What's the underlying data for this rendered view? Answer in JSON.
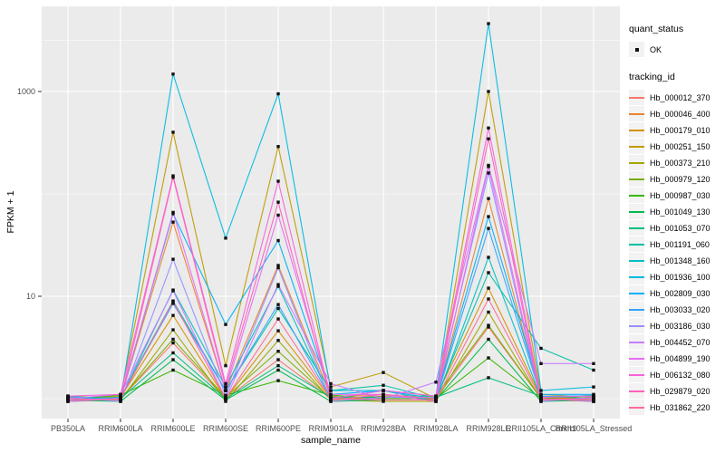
{
  "chart_data": {
    "type": "line",
    "title": "",
    "xlabel": "sample_name",
    "ylabel": "FPKM + 1",
    "y_scale": "log10",
    "y_ticks": [
      10,
      1000
    ],
    "y_minor_gridlines": [
      1,
      100,
      3162
    ],
    "ylim": [
      0.8,
      5600
    ],
    "grid": true,
    "panel_bg": "#EBEBEB",
    "gridline_color": "#FFFFFF",
    "tick_label_color": "#4D4D4D",
    "marker_color": "#111111",
    "legend": {
      "position": "right",
      "quant_status_title": "quant_status",
      "quant_status_items": [
        "OK"
      ],
      "tracking_title": "tracking_id"
    },
    "categories": [
      "PB350LA",
      "RRIM600LA",
      "RRIM600LE",
      "RRIM600SE",
      "RRIM600PE",
      "RRIM901LA",
      "RRIM928BA",
      "RRIM928LA",
      "RRIM928LE",
      "RRII105LA_Control",
      "RRII105LA_Stressed"
    ],
    "series": [
      {
        "name": "Hb_000012_370",
        "color": "#F8766D",
        "values": [
          1.0,
          1.0,
          3.5,
          1.0,
          2.4,
          1.0,
          1.0,
          1.0,
          5.0,
          1.0,
          1.0
        ]
      },
      {
        "name": "Hb_000046_400",
        "color": "#EA8331",
        "values": [
          0.97,
          1.0,
          53,
          1.2,
          20,
          1.05,
          1.1,
          0.97,
          90,
          1.0,
          0.97
        ]
      },
      {
        "name": "Hb_000179_010",
        "color": "#D89000",
        "values": [
          1.03,
          1.03,
          6.5,
          1.0,
          4.6,
          1.0,
          1.03,
          1.03,
          12,
          1.03,
          1.0
        ]
      },
      {
        "name": "Hb_000251_150",
        "color": "#C09B00",
        "values": [
          1.0,
          1.06,
          400,
          2.1,
          290,
          1.3,
          1.8,
          1.0,
          1000,
          1.1,
          1.03
        ]
      },
      {
        "name": "Hb_000373_210",
        "color": "#A3A500",
        "values": [
          0.94,
          0.97,
          4.7,
          0.94,
          3.7,
          0.97,
          0.94,
          0.94,
          7.0,
          0.97,
          0.94
        ]
      },
      {
        "name": "Hb_000979_120",
        "color": "#7CAE00",
        "values": [
          1.06,
          1.0,
          3.8,
          1.03,
          2.9,
          1.0,
          1.06,
          1.06,
          5.2,
          1.0,
          1.06
        ]
      },
      {
        "name": "Hb_000987_030",
        "color": "#39B600",
        "values": [
          1.0,
          1.08,
          1.9,
          1.08,
          1.5,
          1.08,
          1.0,
          1.0,
          2.5,
          1.0,
          1.08
        ]
      },
      {
        "name": "Hb_001049_130",
        "color": "#00BB4E",
        "values": [
          0.97,
          0.94,
          2.4,
          0.97,
          1.9,
          0.94,
          0.97,
          0.97,
          3.8,
          0.94,
          0.97
        ]
      },
      {
        "name": "Hb_001053_070",
        "color": "#00BF7D",
        "values": [
          1.03,
          1.0,
          2.8,
          1.0,
          2.1,
          1.03,
          1.03,
          1.03,
          1.6,
          1.06,
          1.0
        ]
      },
      {
        "name": "Hb_001191_060",
        "color": "#00C1A3",
        "values": [
          1.0,
          1.03,
          9.0,
          1.2,
          7.6,
          1.2,
          1.35,
          1.0,
          17,
          3.1,
          1.9
        ]
      },
      {
        "name": "Hb_001348_160",
        "color": "#00BFC4",
        "values": [
          0.94,
          1.0,
          11.5,
          1.3,
          12.5,
          1.0,
          1.2,
          0.94,
          24,
          1.0,
          0.94
        ]
      },
      {
        "name": "Hb_001936_100",
        "color": "#00BAE0",
        "values": [
          1.06,
          0.97,
          1480,
          37,
          950,
          1.2,
          1.2,
          1.06,
          4600,
          1.2,
          1.3
        ]
      },
      {
        "name": "Hb_002809_030",
        "color": "#00B0F6",
        "values": [
          1.0,
          1.0,
          64,
          5.3,
          35,
          1.1,
          1.2,
          1.0,
          60,
          1.1,
          1.1
        ]
      },
      {
        "name": "Hb_003033_020",
        "color": "#35A2FF",
        "values": [
          0.97,
          1.03,
          8.5,
          1.2,
          8.3,
          1.0,
          0.97,
          0.97,
          46,
          1.05,
          1.07
        ]
      },
      {
        "name": "Hb_003186_030",
        "color": "#9590FF",
        "values": [
          1.03,
          0.94,
          23,
          1.06,
          19,
          0.94,
          1.03,
          1.03,
          160,
          0.94,
          1.03
        ]
      },
      {
        "name": "Hb_004452_070",
        "color": "#C77CFF",
        "values": [
          1.0,
          1.1,
          11.3,
          1.0,
          13,
          1.4,
          1.0,
          1.45,
          190,
          2.2,
          2.2
        ]
      },
      {
        "name": "Hb_004899_190",
        "color": "#E76BF3",
        "values": [
          0.94,
          1.0,
          66,
          1.2,
          62,
          1.1,
          1.1,
          0.94,
          185,
          1.0,
          0.94
        ]
      },
      {
        "name": "Hb_006132_080",
        "color": "#FA62DB",
        "values": [
          1.06,
          1.1,
          150,
          1.4,
          133,
          1.0,
          1.2,
          1.06,
          440,
          1.03,
          1.06
        ]
      },
      {
        "name": "Hb_029879_020",
        "color": "#FF62BC",
        "values": [
          1.0,
          0.97,
          145,
          1.3,
          83,
          0.97,
          1.1,
          1.0,
          345,
          0.97,
          1.0
        ]
      },
      {
        "name": "Hb_031862_220",
        "color": "#FF6A98",
        "values": [
          0.97,
          1.0,
          8.9,
          1.0,
          6.0,
          1.0,
          0.97,
          0.97,
          9.4,
          1.0,
          0.97
        ]
      }
    ]
  }
}
